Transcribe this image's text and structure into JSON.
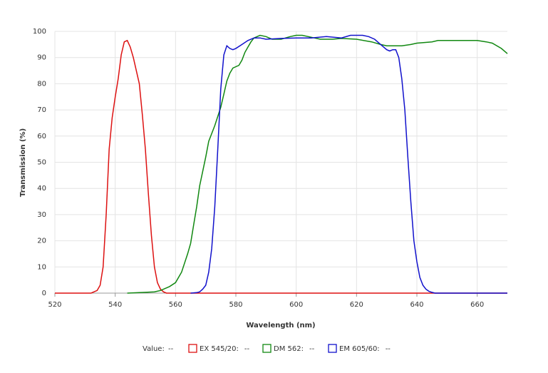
{
  "chart_data": {
    "type": "line",
    "xlabel": "Wavelength (nm)",
    "ylabel": "Transmission (%)",
    "xlim": [
      520,
      670
    ],
    "xticks": [
      520,
      540,
      560,
      580,
      600,
      620,
      640,
      660
    ],
    "ylim": [
      0,
      100
    ],
    "yticks": [
      0,
      10,
      20,
      30,
      40,
      50,
      60,
      70,
      80,
      90,
      100
    ],
    "grid": true,
    "readout": {
      "label": "Value:",
      "value": "--"
    },
    "series": [
      {
        "name": "EX 545/20:",
        "readout": "--",
        "color": "#dd1111",
        "x": [
          520,
          532,
          534,
          535,
          536,
          537,
          538,
          539,
          540,
          541,
          542,
          543,
          544,
          545,
          546,
          547,
          548,
          549,
          550,
          551,
          552,
          553,
          554,
          555,
          556,
          557,
          670
        ],
        "values": [
          0,
          0,
          1,
          3,
          10,
          30,
          55,
          67,
          75,
          82,
          91,
          96,
          96.5,
          94,
          90,
          85,
          80,
          68,
          55,
          38,
          22,
          10,
          4,
          1.5,
          0.5,
          0,
          0
        ]
      },
      {
        "name": "DM 562:",
        "readout": "--",
        "color": "#118811",
        "x": [
          544,
          550,
          553,
          555,
          558,
          560,
          562,
          564,
          565,
          566,
          567,
          568,
          570,
          571,
          573,
          575,
          576,
          577,
          578,
          579,
          580,
          581,
          582,
          583,
          584,
          585,
          586,
          588,
          590,
          592,
          595,
          598,
          600,
          602,
          604,
          606,
          608,
          612,
          615,
          620,
          625,
          628,
          630,
          635,
          638,
          640,
          645,
          647,
          655,
          660,
          663,
          665,
          668,
          670
        ],
        "values": [
          0,
          0.3,
          0.5,
          1,
          2.5,
          4,
          8,
          15,
          19,
          26,
          33,
          41,
          52,
          58,
          64,
          71,
          76,
          81,
          84,
          86,
          86.5,
          87,
          89,
          92,
          94,
          96,
          97.5,
          98.5,
          98,
          97,
          97,
          98,
          98.5,
          98.5,
          98,
          97.5,
          97,
          97,
          97.3,
          97,
          96,
          95,
          94.5,
          94.5,
          95,
          95.5,
          96,
          96.5,
          96.5,
          96.5,
          96,
          95.5,
          93.5,
          91.5
        ]
      },
      {
        "name": "EM 605/60:",
        "readout": "--",
        "color": "#1111cc",
        "x": [
          565,
          567,
          568,
          569,
          570,
          571,
          572,
          573,
          574,
          575,
          576,
          577,
          578,
          579,
          580,
          582,
          584,
          586,
          588,
          590,
          595,
          600,
          605,
          610,
          615,
          618,
          622,
          624,
          626,
          628,
          630,
          631,
          632,
          633,
          634,
          635,
          636,
          637,
          638,
          639,
          640,
          641,
          642,
          643,
          644,
          645,
          646,
          670
        ],
        "values": [
          0,
          0.2,
          0.5,
          1.5,
          3,
          8,
          17,
          33,
          55,
          78,
          91,
          94.5,
          93.5,
          93,
          93.5,
          95,
          96.5,
          97.5,
          97.5,
          97,
          97.3,
          97.5,
          97.5,
          98,
          97.5,
          98.5,
          98.5,
          98,
          97,
          95,
          93,
          92.5,
          93,
          93,
          90,
          82,
          70,
          52,
          35,
          20,
          12,
          6,
          3,
          1.5,
          0.7,
          0.3,
          0,
          0
        ]
      }
    ]
  }
}
